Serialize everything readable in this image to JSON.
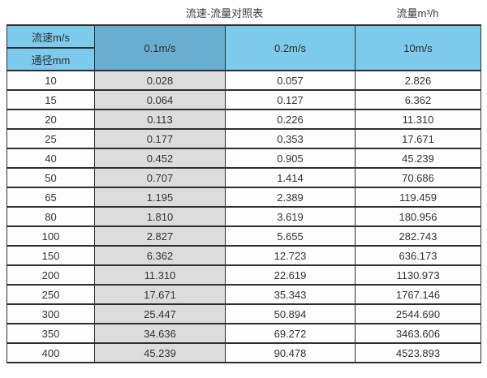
{
  "page": {
    "title": "流速-流量对照表",
    "unit_label": "流量m³/h"
  },
  "table": {
    "corner_top": "流速m/s",
    "corner_bottom": "通径mm",
    "columns": [
      "0.1m/s",
      "0.2m/s",
      "10m/s"
    ],
    "rows": [
      {
        "diameter": "10",
        "values": [
          "0.028",
          "0.057",
          "2.826"
        ]
      },
      {
        "diameter": "15",
        "values": [
          "0.064",
          "0.127",
          "6.362"
        ]
      },
      {
        "diameter": "20",
        "values": [
          "0.113",
          "0.226",
          "11.310"
        ]
      },
      {
        "diameter": "25",
        "values": [
          "0.177",
          "0.353",
          "17.671"
        ]
      },
      {
        "diameter": "40",
        "values": [
          "0.452",
          "0.905",
          "45.239"
        ]
      },
      {
        "diameter": "50",
        "values": [
          "0.707",
          "1.414",
          "70.686"
        ]
      },
      {
        "diameter": "65",
        "values": [
          "1.195",
          "2.389",
          "119.459"
        ]
      },
      {
        "diameter": "80",
        "values": [
          "1.810",
          "3.619",
          "180.956"
        ]
      },
      {
        "diameter": "100",
        "values": [
          "2.827",
          "5.655",
          "282.743"
        ]
      },
      {
        "diameter": "150",
        "values": [
          "6.362",
          "12.723",
          "636.173"
        ]
      },
      {
        "diameter": "200",
        "values": [
          "11.310",
          "22.619",
          "1130.973"
        ]
      },
      {
        "diameter": "250",
        "values": [
          "17.671",
          "35.343",
          "1767.146"
        ]
      },
      {
        "diameter": "300",
        "values": [
          "25.447",
          "50.894",
          "2544.690"
        ]
      },
      {
        "diameter": "350",
        "values": [
          "34.636",
          "69.272",
          "3463.606"
        ]
      },
      {
        "diameter": "400",
        "values": [
          "45.239",
          "90.478",
          "4523.893"
        ]
      }
    ]
  },
  "colors": {
    "header_light_blue": "#7ccaec",
    "header_dark_blue": "#68aed0",
    "highlight_column_grey": "#dcdcdc",
    "border_dark": "#2e2e2e"
  },
  "chart_data": {
    "type": "table",
    "title": "流速-流量对照表",
    "unit_header": "流量m³/h",
    "row_header_top": "流速m/s",
    "row_header_bottom": "通径mm",
    "velocity_columns": [
      "0.1m/s",
      "0.2m/s",
      "10m/s"
    ],
    "diameters_mm": [
      10,
      15,
      20,
      25,
      40,
      50,
      65,
      80,
      100,
      150,
      200,
      250,
      300,
      350,
      400
    ],
    "series": [
      {
        "name": "0.1m/s",
        "values": [
          0.028,
          0.064,
          0.113,
          0.177,
          0.452,
          0.707,
          1.195,
          1.81,
          2.827,
          6.362,
          11.31,
          17.671,
          25.447,
          34.636,
          45.239
        ]
      },
      {
        "name": "0.2m/s",
        "values": [
          0.057,
          0.127,
          0.226,
          0.353,
          0.905,
          1.414,
          2.389,
          3.619,
          5.655,
          12.723,
          22.619,
          35.343,
          50.894,
          69.272,
          90.478
        ]
      },
      {
        "name": "10m/s",
        "values": [
          2.826,
          6.362,
          11.31,
          17.671,
          45.239,
          70.686,
          119.459,
          180.956,
          282.743,
          636.173,
          1130.973,
          1767.146,
          2544.69,
          3463.606,
          4523.893
        ]
      }
    ],
    "layout_hints": {
      "highlighted_column": "0.1m/s",
      "grid": true,
      "header_fill": "light-blue",
      "highlight_fill": "grey"
    }
  }
}
